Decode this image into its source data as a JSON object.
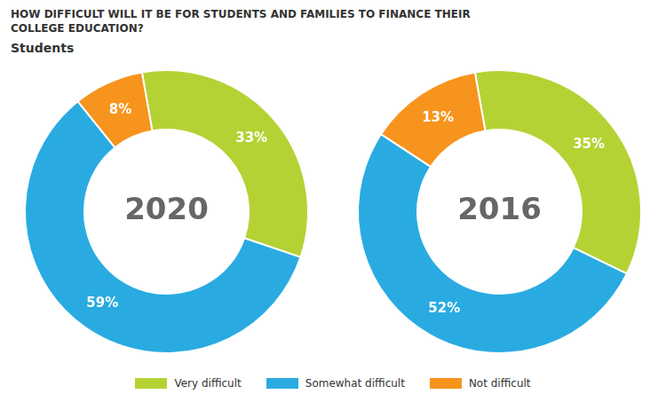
{
  "title": [
    "HOW DIFFICULT WILL IT BE FOR STUDENTS AND FAMILIES TO FINANCE THEIR",
    "COLLEGE EDUCATION?"
  ],
  "subtitle": "Students",
  "legend": "bottom",
  "chart_data": [
    {
      "type": "doughnut",
      "annotations": [
        "2020"
      ],
      "categories": [
        "Very difficult",
        "Somewhat difficult",
        "Not difficult"
      ],
      "values": [
        33,
        59,
        8
      ],
      "value_labels": [
        "33%",
        "59%",
        "8%"
      ],
      "colors": [
        "#b5d234",
        "#29abe2",
        "#f7941d"
      ],
      "data_labels": true
    },
    {
      "type": "doughnut",
      "annotations": [
        "2016"
      ],
      "categories": [
        "Very difficult",
        "Somewhat difficult",
        "Not difficult"
      ],
      "values": [
        35,
        52,
        13
      ],
      "value_labels": [
        "35%",
        "52%",
        "13%"
      ],
      "colors": [
        "#b5d234",
        "#29abe2",
        "#f7941d"
      ],
      "data_labels": true
    }
  ]
}
